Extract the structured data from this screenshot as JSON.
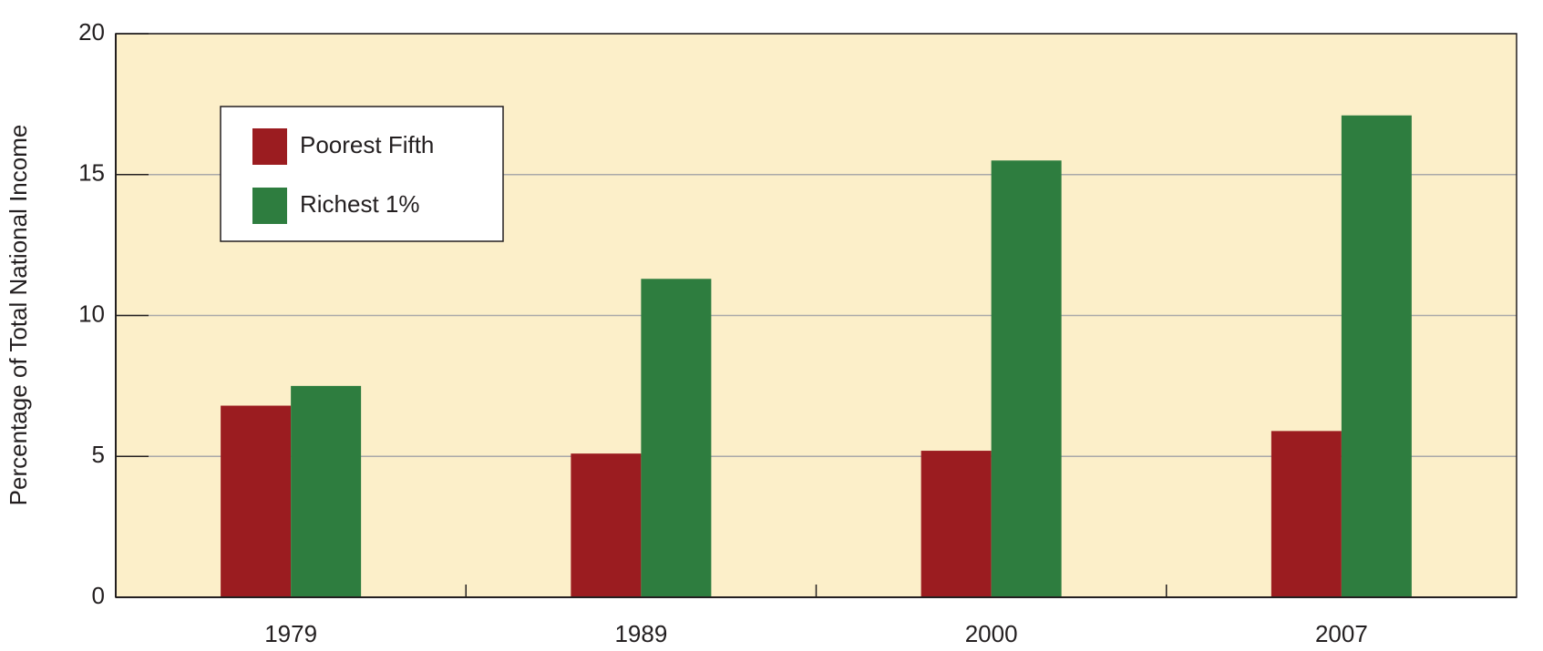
{
  "chart_data": {
    "type": "bar",
    "y_label": "Percentage of Total National Income",
    "categories": [
      "1979",
      "1989",
      "2000",
      "2007"
    ],
    "series": [
      {
        "name": "Poorest Fifth",
        "color": "#9b1c20",
        "values": [
          6.8,
          5.1,
          5.2,
          5.9
        ]
      },
      {
        "name": "Richest 1%",
        "color": "#2e7d3f",
        "values": [
          7.5,
          11.3,
          15.5,
          17.1
        ]
      }
    ],
    "ylim": [
      0,
      20
    ],
    "yticks": [
      0,
      5,
      10,
      15,
      20
    ],
    "grid": true,
    "legend": "upper left",
    "background": "#fcefc9"
  }
}
